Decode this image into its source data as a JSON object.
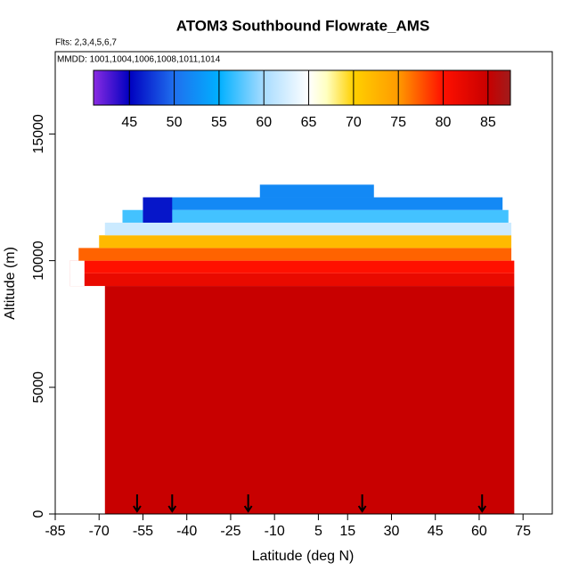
{
  "chart_data": {
    "type": "curtain",
    "title": "ATOM3 Southbound Flowrate_AMS",
    "subtitle": "Flts: 2,3,4,5,6,7",
    "annotation": "MMDD: 1001,1004,1006,1008,1011,1014",
    "xlabel": "Latitude (deg N)",
    "ylabel": "Altitude (m)",
    "xlim": [
      -85,
      85
    ],
    "xticks": [
      -85,
      -70,
      -55,
      -40,
      -25,
      -10,
      5,
      15,
      30,
      45,
      60,
      75
    ],
    "ylim": [
      0,
      18250
    ],
    "yticks": [
      0,
      5000,
      10000,
      15000
    ],
    "colorbar": {
      "lim": [
        41,
        87.5
      ],
      "ticks": [
        45,
        50,
        55,
        60,
        65,
        70,
        75,
        80,
        85
      ]
    },
    "colorscale": [
      {
        "value": 41,
        "color": "#8a2be2"
      },
      {
        "value": 45,
        "color": "#0000c0"
      },
      {
        "value": 50,
        "color": "#1f6fee"
      },
      {
        "value": 55,
        "color": "#00b0ff"
      },
      {
        "value": 60,
        "color": "#a8dcff"
      },
      {
        "value": 65,
        "color": "#ffffff"
      },
      {
        "value": 67,
        "color": "#ffffc0"
      },
      {
        "value": 70,
        "color": "#ffd000"
      },
      {
        "value": 75,
        "color": "#ff9a00"
      },
      {
        "value": 80,
        "color": "#ff1000"
      },
      {
        "value": 85,
        "color": "#c80000"
      },
      {
        "value": 87.5,
        "color": "#a01c1c"
      }
    ],
    "layers": [
      {
        "lat": [
          -68,
          72
        ],
        "alt": [
          0,
          9000
        ],
        "value": 85
      },
      {
        "lat": [
          -80,
          72
        ],
        "alt": [
          9000,
          9500
        ],
        "value": 82
      },
      {
        "lat": [
          -80,
          72
        ],
        "alt": [
          9500,
          10000
        ],
        "value": 80
      },
      {
        "lat": [
          -80,
          -75
        ],
        "alt": [
          9000,
          10000
        ],
        "value": 65
      },
      {
        "lat": [
          -77,
          71
        ],
        "alt": [
          10000,
          10500
        ],
        "value": 77
      },
      {
        "lat": [
          -70,
          71
        ],
        "alt": [
          10500,
          11000
        ],
        "value": 72
      },
      {
        "lat": [
          -68,
          71
        ],
        "alt": [
          11000,
          11500
        ],
        "value": 62
      },
      {
        "lat": [
          -62,
          70
        ],
        "alt": [
          11500,
          12000
        ],
        "value": 57
      },
      {
        "lat": [
          -55,
          68
        ],
        "alt": [
          12000,
          12500
        ],
        "value": 52
      },
      {
        "lat": [
          -55,
          -45
        ],
        "alt": [
          11500,
          12500
        ],
        "value": 46
      },
      {
        "lat": [
          -15,
          24
        ],
        "alt": [
          12500,
          13000
        ],
        "value": 52
      }
    ],
    "arrows": [
      -57,
      -45,
      -19,
      20,
      61
    ]
  }
}
